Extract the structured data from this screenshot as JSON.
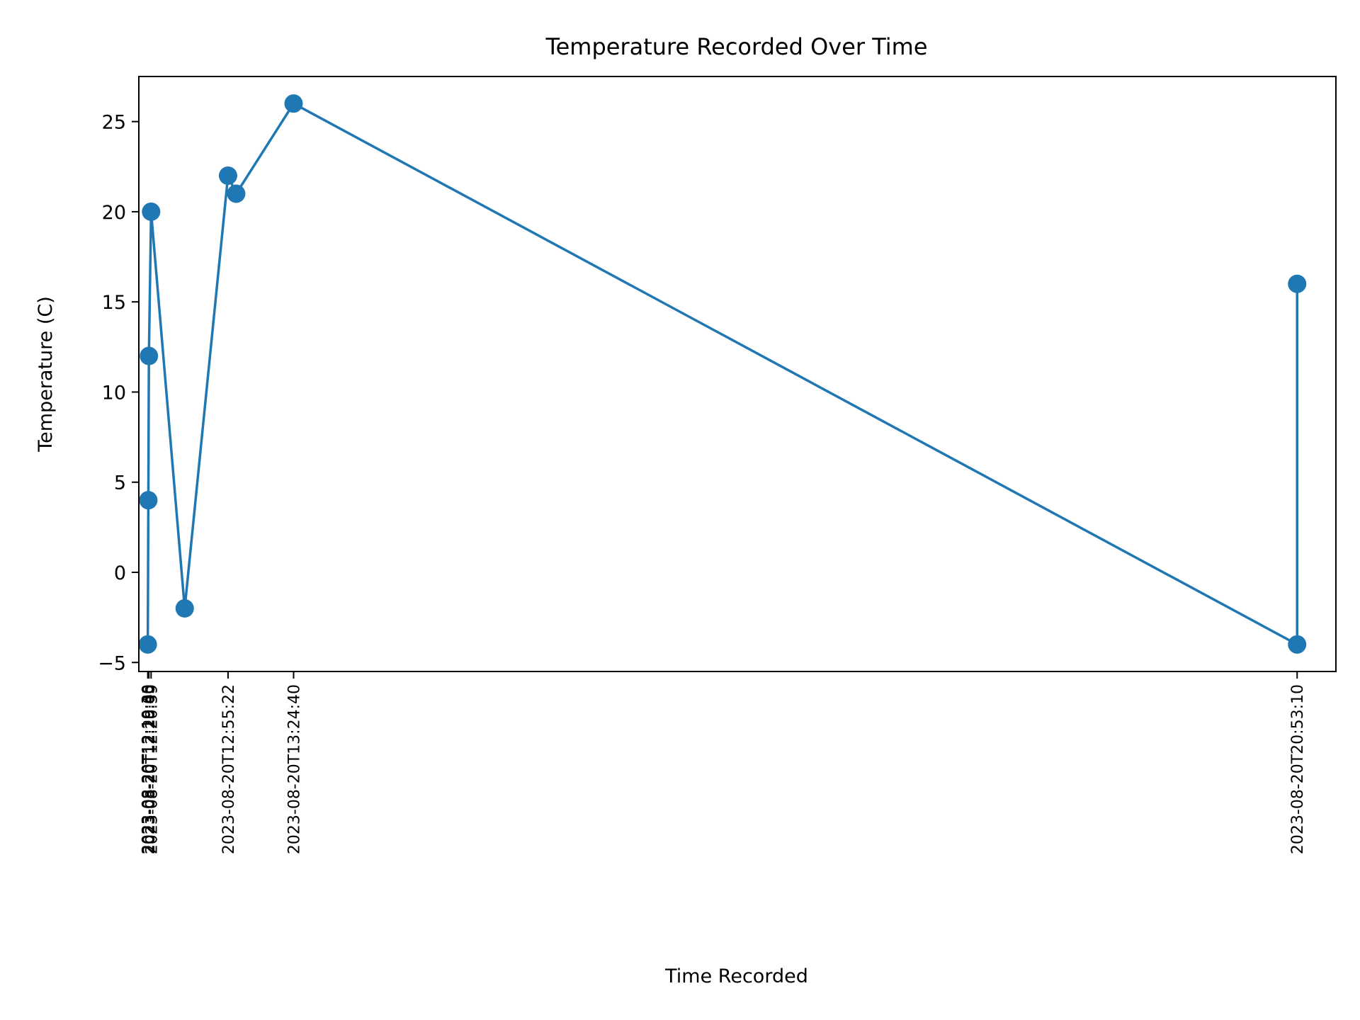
{
  "chart_data": {
    "type": "line",
    "title": "Temperature Recorded Over Time",
    "xlabel": "Time Recorded",
    "ylabel": "Temperature (C)",
    "series_color": "#1f77b4",
    "marker": "circle",
    "grid": false,
    "ylim": [
      -5.5,
      27.5
    ],
    "yticks": [
      -5,
      0,
      5,
      10,
      15,
      20,
      25
    ],
    "ytick_labels": [
      "−5",
      "0",
      "5",
      "10",
      "15",
      "20",
      "25"
    ],
    "xlim": [
      "2023-08-20T12:15:30",
      "2023-08-20T21:10:30"
    ],
    "points": [
      {
        "x": "2023-08-20T12:19:30",
        "y": -4
      },
      {
        "x": "2023-08-20T12:19:45",
        "y": 4
      },
      {
        "x": "2023-08-20T12:20:00",
        "y": 12
      },
      {
        "x": "2023-08-20T12:20:59",
        "y": 20
      },
      {
        "x": "2023-08-20T12:36:00",
        "y": -2
      },
      {
        "x": "2023-08-20T12:55:22",
        "y": 22
      },
      {
        "x": "2023-08-20T12:59:00",
        "y": 21
      },
      {
        "x": "2023-08-20T13:24:40",
        "y": 26
      },
      {
        "x": "2023-08-20T20:53:10",
        "y": -4
      },
      {
        "x": "2023-08-20T20:53:10",
        "y": 16
      }
    ],
    "xtick_labels": [
      "2023-08-20T12:19:30",
      "2023-08-20T12:19:45",
      "2023-08-20T12:20:00",
      "2023-08-20T12:20:59",
      "2023-08-20T12:55:22",
      "2023-08-20T13:24:40",
      "2023-08-20T20:53:10"
    ]
  }
}
